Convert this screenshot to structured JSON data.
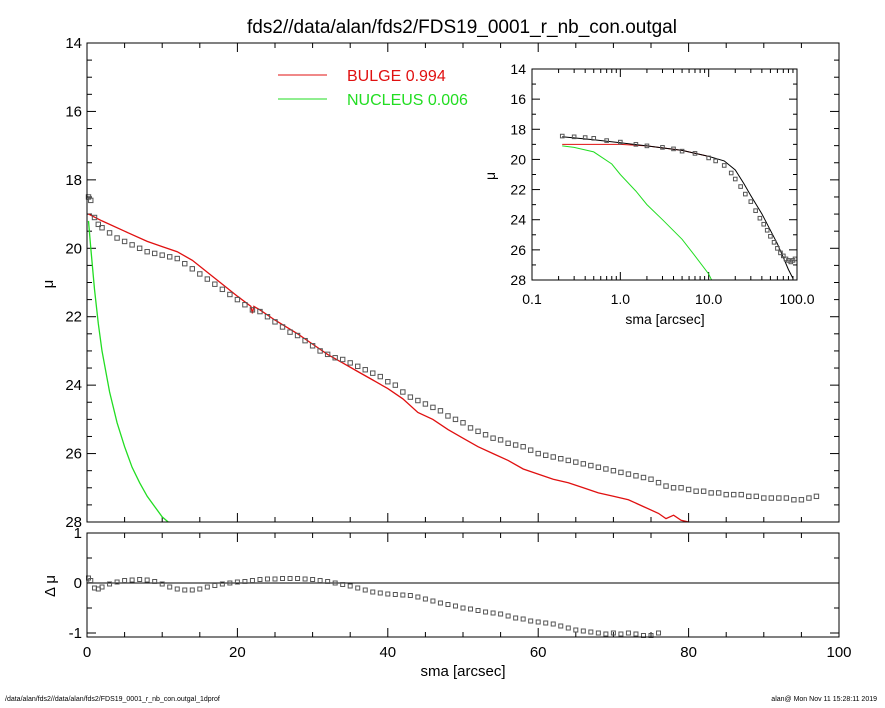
{
  "title": "fds2//data/alan/fds2/FDS19_0001_r_nb_con.outgal",
  "footer": {
    "left": "/data/alan/fds2//data/alan/fds2/FDS19_0001_r_nb_con.outgal_1dprof",
    "right": "alan@  Mon Nov 11 15:28:11 2019"
  },
  "colors": {
    "bulge": "#e01010",
    "nucleus": "#22dd22",
    "data": "#555555",
    "axis": "#000000"
  },
  "chart_data": [
    {
      "type": "line",
      "ylabel": "μ",
      "xlim": [
        0,
        100
      ],
      "ylim": [
        28,
        14
      ],
      "yticks": [
        "14",
        "16",
        "18",
        "20",
        "22",
        "24",
        "26",
        "28"
      ],
      "legend": [
        {
          "label": "BULGE  0.994",
          "color": "#e01010"
        },
        {
          "label": "NUCLEUS  0.006",
          "color": "#22dd22"
        }
      ],
      "series": [
        {
          "name": "BULGE  0.994",
          "color": "#e01010",
          "x": [
            0.2,
            2,
            5,
            8,
            10,
            12,
            14,
            16,
            18,
            20,
            21.8,
            22,
            22.2,
            23,
            25,
            28,
            30,
            32,
            34,
            36,
            38,
            40,
            42,
            44,
            46,
            48,
            50,
            52,
            54,
            56,
            58,
            60,
            62,
            64,
            66,
            68,
            70,
            72,
            74,
            76,
            77,
            78,
            79,
            80
          ],
          "y": [
            19.0,
            19.2,
            19.5,
            19.8,
            19.95,
            20.1,
            20.35,
            20.7,
            21.05,
            21.4,
            21.7,
            21.9,
            21.7,
            21.8,
            22.1,
            22.5,
            22.8,
            23.1,
            23.35,
            23.6,
            23.85,
            24.1,
            24.4,
            24.8,
            25.0,
            25.3,
            25.55,
            25.8,
            26.0,
            26.2,
            26.45,
            26.6,
            26.75,
            26.85,
            27.0,
            27.15,
            27.25,
            27.35,
            27.55,
            27.75,
            27.9,
            27.8,
            27.95,
            28.0
          ]
        },
        {
          "name": "NUCLEUS  0.006",
          "color": "#22dd22",
          "x": [
            0.2,
            0.5,
            1,
            1.5,
            2,
            3,
            4,
            5,
            6,
            7,
            8,
            9,
            10,
            10.8
          ],
          "y": [
            19.2,
            20.0,
            21.2,
            22.2,
            23.0,
            24.2,
            25.1,
            25.8,
            26.4,
            26.85,
            27.25,
            27.55,
            27.85,
            28.0
          ]
        },
        {
          "name": "",
          "type": "scatter",
          "marker": "square",
          "x": [
            0.2,
            0.5,
            1,
            1.5,
            2,
            3,
            4,
            5,
            6,
            7,
            8,
            9,
            10,
            11,
            12,
            13,
            14,
            15,
            16,
            17,
            18,
            19,
            20,
            21,
            22,
            23,
            24,
            25,
            26,
            27,
            28,
            29,
            30,
            31,
            32,
            33,
            34,
            35,
            36,
            37,
            38,
            39,
            40,
            41,
            42,
            43,
            44,
            45,
            46,
            47,
            48,
            49,
            50,
            51,
            52,
            53,
            54,
            55,
            56,
            57,
            58,
            59,
            60,
            61,
            62,
            63,
            64,
            65,
            66,
            67,
            68,
            69,
            70,
            71,
            72,
            73,
            74,
            75,
            76,
            77,
            78,
            79,
            80,
            81,
            82,
            83,
            84,
            85,
            86,
            87,
            88,
            89,
            90,
            91,
            92,
            93,
            94,
            95,
            96,
            97
          ],
          "y": [
            18.5,
            18.6,
            19.1,
            19.3,
            19.4,
            19.55,
            19.7,
            19.8,
            19.9,
            20.0,
            20.1,
            20.15,
            20.2,
            20.25,
            20.3,
            20.45,
            20.6,
            20.75,
            20.9,
            21.05,
            21.2,
            21.35,
            21.5,
            21.65,
            21.8,
            21.85,
            22.0,
            22.15,
            22.3,
            22.45,
            22.55,
            22.7,
            22.85,
            23.0,
            23.1,
            23.2,
            23.25,
            23.35,
            23.45,
            23.55,
            23.65,
            23.75,
            23.9,
            24.0,
            24.2,
            24.35,
            24.45,
            24.55,
            24.65,
            24.75,
            24.9,
            25.0,
            25.1,
            25.25,
            25.35,
            25.45,
            25.55,
            25.6,
            25.7,
            25.75,
            25.8,
            25.9,
            26.0,
            26.05,
            26.1,
            26.15,
            26.2,
            26.25,
            26.3,
            26.35,
            26.4,
            26.45,
            26.5,
            26.55,
            26.6,
            26.65,
            26.7,
            26.75,
            26.85,
            26.95,
            27.0,
            27.0,
            27.05,
            27.1,
            27.1,
            27.15,
            27.15,
            27.2,
            27.2,
            27.2,
            27.25,
            27.25,
            27.3,
            27.3,
            27.3,
            27.3,
            27.35,
            27.35,
            27.3,
            27.25
          ]
        }
      ]
    },
    {
      "type": "scatter",
      "xlabel": "sma [arcsec]",
      "ylabel": "Δ μ",
      "xlim": [
        0,
        100
      ],
      "ylim": [
        -1,
        1
      ],
      "xticks": [
        "0",
        "20",
        "40",
        "60",
        "80",
        "100"
      ],
      "yticks": [
        "1",
        "0",
        "-1"
      ],
      "series": [
        {
          "name": "",
          "x": [
            0.2,
            0.5,
            1,
            1.5,
            2,
            3,
            4,
            5,
            6,
            7,
            8,
            9,
            10,
            11,
            12,
            13,
            14,
            15,
            16,
            17,
            18,
            19,
            20,
            21,
            22,
            23,
            24,
            25,
            26,
            27,
            28,
            29,
            30,
            31,
            32,
            33,
            34,
            35,
            36,
            37,
            38,
            39,
            40,
            41,
            42,
            43,
            44,
            45,
            46,
            47,
            48,
            49,
            50,
            51,
            52,
            53,
            54,
            55,
            56,
            57,
            58,
            59,
            60,
            61,
            62,
            63,
            64,
            65,
            66,
            67,
            68,
            69,
            70,
            71,
            72,
            73,
            74,
            75,
            76
          ],
          "y": [
            0.1,
            0.05,
            -0.1,
            -0.12,
            -0.08,
            -0.02,
            0.02,
            0.05,
            0.06,
            0.07,
            0.06,
            0.03,
            -0.02,
            -0.08,
            -0.12,
            -0.14,
            -0.14,
            -0.12,
            -0.08,
            -0.05,
            -0.02,
            0.0,
            0.02,
            0.03,
            0.05,
            0.07,
            0.08,
            0.08,
            0.09,
            0.09,
            0.09,
            0.08,
            0.07,
            0.05,
            0.03,
            0.0,
            -0.03,
            -0.06,
            -0.1,
            -0.14,
            -0.18,
            -0.2,
            -0.22,
            -0.23,
            -0.24,
            -0.25,
            -0.28,
            -0.32,
            -0.36,
            -0.4,
            -0.43,
            -0.46,
            -0.5,
            -0.52,
            -0.55,
            -0.58,
            -0.6,
            -0.62,
            -0.66,
            -0.7,
            -0.72,
            -0.76,
            -0.78,
            -0.8,
            -0.82,
            -0.86,
            -0.9,
            -0.94,
            -0.96,
            -0.98,
            -1.0,
            -1.02,
            -1.0,
            -1.02,
            -1.0,
            -1.02,
            -1.05,
            -1.05,
            -1.0
          ]
        }
      ]
    },
    {
      "type": "line",
      "xlabel": "sma [arcsec]",
      "ylabel": "μ",
      "xscale": "log",
      "xlim": [
        0.1,
        100.0
      ],
      "ylim": [
        28,
        14
      ],
      "xticks": [
        "0.1",
        "1.0",
        "10.0",
        "100.0"
      ],
      "yticks": [
        "14",
        "16",
        "18",
        "20",
        "22",
        "24",
        "26",
        "28"
      ],
      "series": [
        {
          "name": "",
          "color": "#e01010",
          "x": [
            0.22,
            0.5,
            1.0,
            2.0,
            5.0,
            10.0
          ],
          "y": [
            19.0,
            19.0,
            19.0,
            19.1,
            19.4,
            19.8
          ]
        },
        {
          "name": "",
          "color": "#22dd22",
          "x": [
            0.22,
            0.3,
            0.5,
            0.8,
            1.0,
            1.5,
            2.0,
            3.0,
            5.0,
            7.0,
            10.0,
            10.8
          ],
          "y": [
            19.1,
            19.2,
            19.5,
            20.3,
            21.0,
            22.1,
            23.0,
            24.0,
            25.3,
            26.4,
            27.6,
            28.0
          ]
        },
        {
          "name": "",
          "color": "#000000",
          "x": [
            0.22,
            0.5,
            1.0,
            2.0,
            5.0,
            10.0,
            15.0,
            20.0,
            25.0,
            30.0,
            40.0,
            50.0,
            60.0,
            70.0,
            80.0,
            90.0
          ],
          "y": [
            18.5,
            18.7,
            18.9,
            19.1,
            19.4,
            19.8,
            20.1,
            20.7,
            21.6,
            22.4,
            23.6,
            24.7,
            25.6,
            26.5,
            27.3,
            27.9
          ]
        },
        {
          "name": "",
          "type": "scatter",
          "marker": "square",
          "x": [
            0.22,
            0.3,
            0.4,
            0.5,
            0.7,
            1.0,
            1.5,
            2.0,
            3.0,
            4.0,
            5.0,
            7.0,
            10.0,
            12.0,
            15.0,
            18.0,
            20.0,
            23.0,
            26.0,
            30.0,
            34.0,
            38.0,
            42.0,
            46.0,
            50.0,
            55.0,
            60.0,
            65.0,
            70.0,
            75.0,
            80.0,
            85.0,
            90.0,
            95.0
          ],
          "y": [
            18.45,
            18.5,
            18.55,
            18.6,
            18.75,
            18.85,
            19.0,
            19.1,
            19.2,
            19.3,
            19.45,
            19.6,
            19.9,
            20.1,
            20.4,
            20.9,
            21.3,
            21.8,
            22.3,
            22.8,
            23.4,
            23.9,
            24.3,
            24.7,
            25.1,
            25.5,
            25.9,
            26.2,
            26.4,
            26.6,
            26.7,
            26.8,
            26.7,
            26.6
          ]
        }
      ]
    }
  ]
}
